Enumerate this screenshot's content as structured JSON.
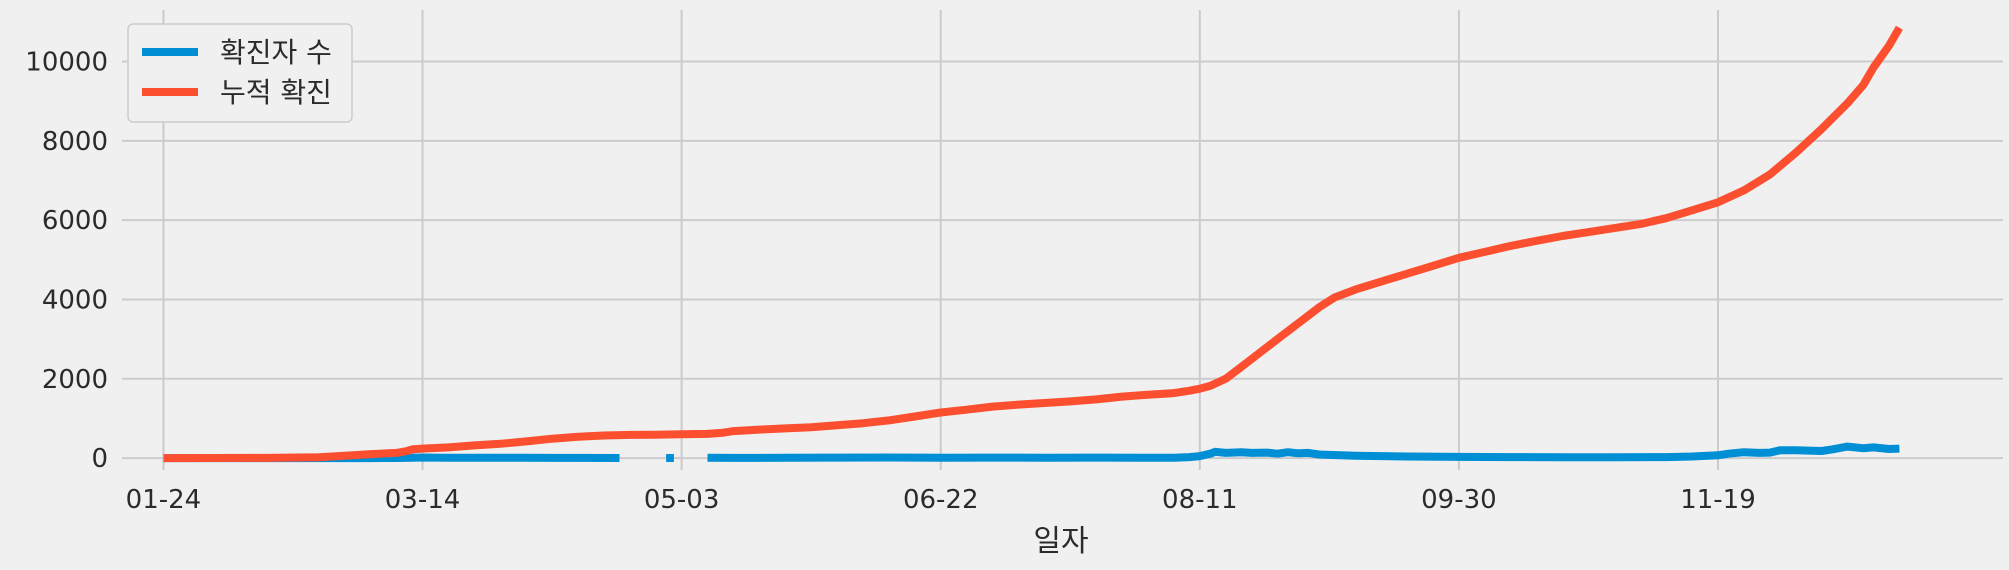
{
  "chart_data": {
    "type": "line",
    "xlabel": "일자",
    "ylabel": "",
    "ylim": [
      -300,
      11300
    ],
    "xlim_days": [
      -8,
      355
    ],
    "grid": true,
    "legend_position": "top-left",
    "yticks": [
      0,
      2000,
      4000,
      6000,
      8000,
      10000
    ],
    "xticks": [
      {
        "label": "01-24",
        "day": 0
      },
      {
        "label": "03-14",
        "day": 50
      },
      {
        "label": "05-03",
        "day": 100
      },
      {
        "label": "06-22",
        "day": 150
      },
      {
        "label": "08-11",
        "day": 200
      },
      {
        "label": "09-30",
        "day": 250
      },
      {
        "label": "11-19",
        "day": 300
      }
    ],
    "x_axis_note": "x values are days after 01-24",
    "series": [
      {
        "name": "확진자 수",
        "color": "#008fd5",
        "segments": [
          [
            [
              0,
              1
            ],
            [
              10,
              0
            ],
            [
              20,
              0
            ],
            [
              30,
              0
            ],
            [
              40,
              0
            ],
            [
              45,
              2
            ],
            [
              48,
              10
            ],
            [
              50,
              15
            ],
            [
              55,
              10
            ],
            [
              60,
              8
            ],
            [
              65,
              10
            ],
            [
              70,
              8
            ],
            [
              75,
              5
            ],
            [
              80,
              4
            ],
            [
              88,
              2
            ]
          ],
          [
            [
              97,
              2
            ],
            [
              98.5,
              2
            ]
          ],
          [
            [
              105,
              10
            ],
            [
              110,
              6
            ],
            [
              120,
              8
            ],
            [
              130,
              12
            ],
            [
              140,
              15
            ],
            [
              150,
              10
            ],
            [
              160,
              12
            ],
            [
              170,
              10
            ],
            [
              180,
              12
            ],
            [
              190,
              10
            ],
            [
              195,
              10
            ],
            [
              198,
              25
            ],
            [
              200,
              50
            ],
            [
              202,
              110
            ],
            [
              203,
              160
            ],
            [
              205,
              130
            ],
            [
              208,
              150
            ],
            [
              210,
              130
            ],
            [
              213,
              140
            ],
            [
              215,
              110
            ],
            [
              217,
              150
            ],
            [
              219,
              120
            ],
            [
              221,
              130
            ],
            [
              223,
              90
            ],
            [
              225,
              80
            ],
            [
              230,
              60
            ],
            [
              235,
              50
            ],
            [
              240,
              40
            ],
            [
              250,
              30
            ],
            [
              260,
              25
            ],
            [
              270,
              20
            ],
            [
              280,
              20
            ],
            [
              290,
              25
            ],
            [
              295,
              40
            ],
            [
              300,
              70
            ],
            [
              302,
              110
            ],
            [
              305,
              150
            ],
            [
              308,
              130
            ],
            [
              310,
              140
            ],
            [
              312,
              200
            ],
            [
              315,
              200
            ],
            [
              320,
              180
            ],
            [
              322,
              220
            ],
            [
              325,
              290
            ],
            [
              328,
              250
            ],
            [
              330,
              270
            ],
            [
              333,
              230
            ],
            [
              335,
              240
            ]
          ]
        ]
      },
      {
        "name": "누적 확진",
        "color": "#fc4f30",
        "segments": [
          [
            [
              0,
              0
            ],
            [
              20,
              5
            ],
            [
              30,
              20
            ],
            [
              35,
              60
            ],
            [
              40,
              100
            ],
            [
              45,
              130
            ],
            [
              47,
              180
            ],
            [
              48,
              220
            ],
            [
              50,
              240
            ],
            [
              55,
              270
            ],
            [
              60,
              320
            ],
            [
              65,
              360
            ],
            [
              70,
              420
            ],
            [
              75,
              490
            ],
            [
              80,
              540
            ],
            [
              85,
              570
            ],
            [
              90,
              585
            ],
            [
              95,
              590
            ],
            [
              100,
              600
            ],
            [
              105,
              610
            ],
            [
              108,
              640
            ],
            [
              110,
              680
            ],
            [
              115,
              720
            ],
            [
              120,
              750
            ],
            [
              125,
              780
            ],
            [
              130,
              830
            ],
            [
              135,
              880
            ],
            [
              140,
              950
            ],
            [
              145,
              1050
            ],
            [
              150,
              1150
            ],
            [
              155,
              1220
            ],
            [
              160,
              1300
            ],
            [
              165,
              1350
            ],
            [
              170,
              1390
            ],
            [
              175,
              1430
            ],
            [
              180,
              1480
            ],
            [
              185,
              1550
            ],
            [
              190,
              1600
            ],
            [
              195,
              1640
            ],
            [
              198,
              1700
            ],
            [
              200,
              1750
            ],
            [
              202,
              1820
            ],
            [
              205,
              2000
            ],
            [
              208,
              2300
            ],
            [
              212,
              2700
            ],
            [
              215,
              3000
            ],
            [
              218,
              3300
            ],
            [
              220,
              3500
            ],
            [
              223,
              3800
            ],
            [
              226,
              4050
            ],
            [
              230,
              4250
            ],
            [
              235,
              4450
            ],
            [
              240,
              4650
            ],
            [
              245,
              4850
            ],
            [
              250,
              5050
            ],
            [
              255,
              5200
            ],
            [
              260,
              5350
            ],
            [
              265,
              5480
            ],
            [
              270,
              5600
            ],
            [
              275,
              5700
            ],
            [
              280,
              5800
            ],
            [
              285,
              5900
            ],
            [
              290,
              6050
            ],
            [
              295,
              6250
            ],
            [
              300,
              6450
            ],
            [
              305,
              6750
            ],
            [
              310,
              7150
            ],
            [
              315,
              7700
            ],
            [
              320,
              8300
            ],
            [
              325,
              8950
            ],
            [
              328,
              9400
            ],
            [
              330,
              9850
            ],
            [
              333,
              10400
            ],
            [
              335,
              10850
            ]
          ]
        ]
      }
    ]
  }
}
